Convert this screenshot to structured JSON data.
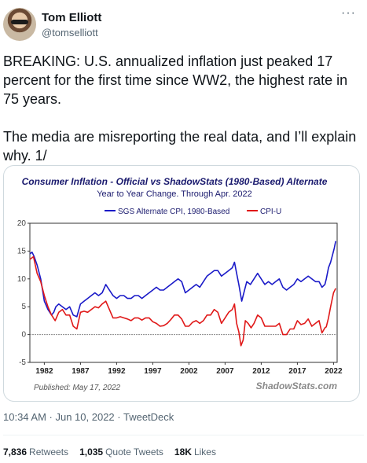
{
  "author": {
    "name": "Tom Elliott",
    "handle": "@tomselliott",
    "more_icon": "more-icon"
  },
  "tweet": {
    "paragraph1": "BREAKING: U.S. annualized inflation just peaked 17 percent for the first time since WW2, the highest rate in 75 years.",
    "paragraph2": "The media are misreporting the real data, and I’ll explain why.  1/"
  },
  "meta": {
    "timestamp": "10:34 AM · Jun 10, 2022 · TweetDeck"
  },
  "stats": {
    "retweets_count": "7,836",
    "retweets_label": "Retweets",
    "quotes_count": "1,035",
    "quotes_label": "Quote Tweets",
    "likes_count": "18K",
    "likes_label": "Likes"
  },
  "chart_data": {
    "type": "line",
    "title": "Consumer Inflation - Official vs ShadowStats (1980-Based) Alternate",
    "subtitle": "Year to Year Change. Through Apr. 2022",
    "published": "Published: May 17, 2022",
    "source": "ShadowStats.com",
    "ylim": [
      -5,
      20
    ],
    "yticks": [
      -5,
      0,
      5,
      10,
      15,
      20
    ],
    "xlim": [
      1980,
      2022.5
    ],
    "xticks": [
      1982,
      1987,
      1992,
      1997,
      2002,
      2007,
      2012,
      2017,
      2022
    ],
    "legend_position": "top",
    "grid": false,
    "zero_line": true,
    "series": [
      {
        "name": "SGS Alternate CPI, 1980-Based",
        "color": "#1a1ac8",
        "x": [
          1980.0,
          1980.3,
          1980.6,
          1981.0,
          1981.5,
          1982.0,
          1982.5,
          1983.0,
          1983.3,
          1983.6,
          1984.0,
          1984.5,
          1985.0,
          1985.5,
          1986.0,
          1986.5,
          1987.0,
          1987.5,
          1988.0,
          1988.5,
          1989.0,
          1989.5,
          1990.0,
          1990.5,
          1991.0,
          1991.5,
          1992.0,
          1992.5,
          1993.0,
          1993.5,
          1994.0,
          1994.5,
          1995.0,
          1995.5,
          1996.0,
          1996.5,
          1997.0,
          1997.5,
          1998.0,
          1998.5,
          1999.0,
          1999.5,
          2000.0,
          2000.5,
          2001.0,
          2001.5,
          2002.0,
          2002.5,
          2003.0,
          2003.5,
          2004.0,
          2004.5,
          2005.0,
          2005.5,
          2006.0,
          2006.5,
          2007.0,
          2007.5,
          2008.0,
          2008.3,
          2008.6,
          2008.9,
          2009.3,
          2009.7,
          2010.0,
          2010.5,
          2011.0,
          2011.5,
          2012.0,
          2012.5,
          2013.0,
          2013.5,
          2014.0,
          2014.5,
          2015.0,
          2015.5,
          2016.0,
          2016.5,
          2017.0,
          2017.5,
          2018.0,
          2018.5,
          2019.0,
          2019.5,
          2020.0,
          2020.4,
          2020.8,
          2021.0,
          2021.3,
          2021.6,
          2021.9,
          2022.1,
          2022.3
        ],
        "values": [
          14.5,
          14.8,
          14.0,
          12.5,
          10.0,
          6.0,
          4.5,
          3.5,
          4.0,
          5.0,
          5.5,
          5.0,
          4.5,
          5.0,
          3.5,
          3.2,
          5.5,
          6.0,
          6.5,
          7.0,
          7.5,
          7.0,
          7.5,
          9.0,
          8.0,
          7.0,
          6.5,
          7.0,
          7.0,
          6.5,
          6.5,
          7.0,
          7.0,
          6.5,
          7.0,
          7.5,
          8.0,
          8.5,
          8.0,
          8.0,
          8.5,
          9.0,
          9.5,
          10.0,
          9.5,
          7.5,
          8.0,
          8.5,
          9.0,
          8.5,
          9.5,
          10.5,
          11.0,
          11.5,
          11.5,
          10.5,
          11.0,
          11.5,
          12.0,
          13.0,
          11.0,
          9.0,
          6.0,
          8.0,
          9.5,
          9.0,
          10.0,
          11.0,
          10.0,
          9.0,
          9.5,
          9.0,
          9.5,
          10.0,
          8.5,
          8.0,
          8.5,
          9.0,
          10.0,
          9.5,
          10.0,
          10.5,
          10.0,
          9.5,
          9.5,
          8.5,
          9.0,
          10.0,
          12.0,
          13.0,
          14.5,
          15.5,
          16.8
        ]
      },
      {
        "name": "CPI-U",
        "color": "#e01818",
        "x": [
          1980.0,
          1980.5,
          1981.0,
          1981.5,
          1982.0,
          1982.5,
          1983.0,
          1983.5,
          1984.0,
          1984.5,
          1985.0,
          1985.5,
          1986.0,
          1986.5,
          1987.0,
          1987.5,
          1988.0,
          1988.5,
          1989.0,
          1989.5,
          1990.0,
          1990.5,
          1991.0,
          1991.5,
          1992.0,
          1992.5,
          1993.0,
          1993.5,
          1994.0,
          1994.5,
          1995.0,
          1995.5,
          1996.0,
          1996.5,
          1997.0,
          1997.5,
          1998.0,
          1998.5,
          1999.0,
          1999.5,
          2000.0,
          2000.5,
          2001.0,
          2001.5,
          2002.0,
          2002.5,
          2003.0,
          2003.5,
          2004.0,
          2004.5,
          2005.0,
          2005.5,
          2006.0,
          2006.5,
          2007.0,
          2007.5,
          2008.0,
          2008.3,
          2008.6,
          2008.9,
          2009.2,
          2009.5,
          2009.8,
          2010.2,
          2010.6,
          2011.0,
          2011.5,
          2012.0,
          2012.5,
          2013.0,
          2013.5,
          2014.0,
          2014.5,
          2015.0,
          2015.5,
          2016.0,
          2016.5,
          2017.0,
          2017.5,
          2018.0,
          2018.5,
          2019.0,
          2019.5,
          2020.0,
          2020.4,
          2020.8,
          2021.0,
          2021.3,
          2021.6,
          2022.0,
          2022.3
        ],
        "values": [
          13.5,
          14.0,
          11.0,
          9.5,
          7.0,
          5.0,
          3.5,
          2.5,
          4.0,
          4.5,
          3.5,
          3.5,
          1.5,
          1.0,
          4.0,
          4.2,
          4.0,
          4.5,
          5.0,
          4.8,
          5.5,
          6.0,
          4.5,
          3.0,
          3.0,
          3.2,
          3.0,
          2.8,
          2.5,
          3.0,
          3.0,
          2.6,
          3.0,
          3.0,
          2.3,
          2.0,
          1.5,
          1.6,
          2.0,
          2.7,
          3.5,
          3.5,
          2.8,
          1.5,
          1.5,
          2.2,
          2.5,
          2.0,
          2.5,
          3.5,
          3.5,
          4.5,
          4.0,
          2.0,
          3.0,
          4.0,
          4.5,
          5.5,
          2.0,
          0.5,
          -2.0,
          -1.0,
          2.5,
          2.0,
          1.2,
          2.0,
          3.5,
          3.0,
          1.5,
          1.5,
          1.5,
          1.5,
          2.0,
          0.0,
          0.0,
          1.0,
          1.0,
          2.5,
          1.8,
          2.0,
          2.8,
          1.5,
          2.0,
          2.5,
          0.3,
          1.2,
          1.4,
          3.0,
          5.0,
          7.5,
          8.3
        ]
      }
    ]
  }
}
